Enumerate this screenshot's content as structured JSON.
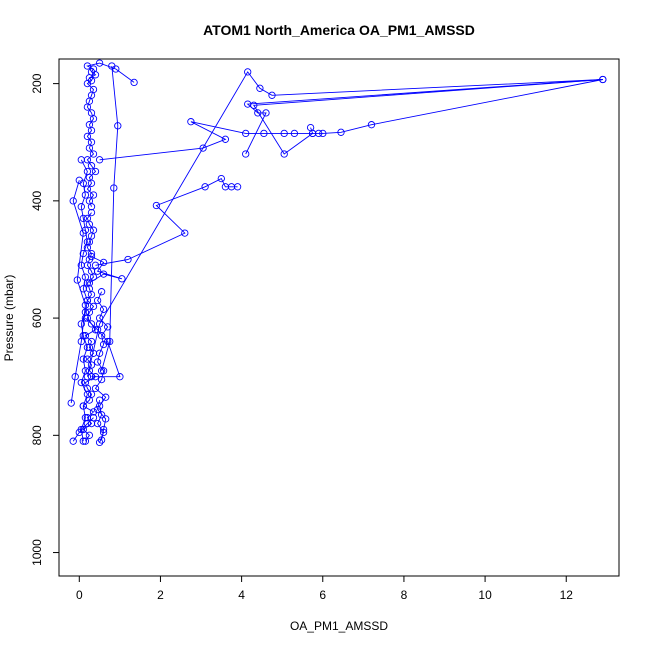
{
  "chart_data": {
    "type": "line",
    "title": "ATOM1 North_America OA_PM1_AMSSD",
    "xlabel": "OA_PM1_AMSSD",
    "ylabel": "Pressure (mbar)",
    "xlim": [
      -0.5,
      13.3
    ],
    "ylim": [
      1040,
      158
    ],
    "y_reversed": true,
    "grid": false,
    "legend": "none",
    "color": "#0000ff",
    "marker": "open-circle",
    "x_ticks": [
      0,
      2,
      4,
      6,
      8,
      10,
      12
    ],
    "y_ticks": [
      200,
      400,
      600,
      800,
      1000
    ],
    "series": [
      {
        "x": [
          0.15,
          0.25,
          0.1,
          0.3,
          0.2,
          0.35,
          0.1,
          0.25,
          0.3,
          0.2,
          0.15,
          0.4,
          0.25,
          0.3,
          0.2,
          0.35,
          0.25,
          0.3,
          0.15,
          0.4,
          0.3,
          0.2,
          0.25,
          0.35,
          0.2,
          0.3,
          0.25,
          0.2,
          0.35,
          0.3,
          0.2,
          0.25,
          0.3,
          0.2,
          0.25,
          0.3,
          0.35,
          0.25,
          0.2,
          0.3
        ],
        "y": [
          810,
          800,
          790,
          780,
          770,
          760,
          750,
          740,
          730,
          720,
          710,
          700,
          690,
          680,
          670,
          660,
          650,
          640,
          630,
          620,
          610,
          600,
          590,
          580,
          570,
          560,
          550,
          540,
          530,
          520,
          510,
          500,
          490,
          480,
          470,
          460,
          450,
          440,
          430,
          420
        ]
      },
      {
        "x": [
          0.3,
          0.25,
          0.35,
          0.2,
          0.3,
          0.25,
          0.4,
          0.3,
          0.2,
          0.35,
          0.25,
          0.3,
          0.2,
          0.3,
          0.25,
          0.35,
          0.3,
          0.2,
          0.25,
          0.3,
          0.35,
          0.2,
          0.3,
          0.25,
          0.4,
          0.3,
          0.35,
          0.2,
          0.5,
          0.9,
          1.35
        ],
        "y": [
          410,
          400,
          390,
          380,
          370,
          360,
          350,
          340,
          330,
          320,
          310,
          300,
          290,
          280,
          270,
          260,
          250,
          240,
          230,
          220,
          210,
          200,
          195,
          190,
          185,
          180,
          175,
          170,
          165,
          175,
          198
        ]
      },
      {
        "x": [
          0.1,
          0.05,
          0.15,
          0.1,
          0.2,
          0.05,
          0.15,
          0.1,
          0.2,
          0.1,
          0.05,
          0.15,
          0.2,
          0.1,
          0.15,
          0.05,
          0.1,
          0.2,
          0.15,
          0.1,
          0.05,
          0.15,
          0.1,
          0.2,
          0.05
        ],
        "y": [
          810,
          790,
          770,
          750,
          730,
          710,
          690,
          670,
          650,
          630,
          610,
          590,
          570,
          550,
          530,
          510,
          490,
          470,
          450,
          430,
          410,
          390,
          370,
          350,
          330
        ]
      },
      {
        "x": [
          0.5,
          0.6,
          0.45,
          0.55,
          0.5,
          0.65,
          0.4,
          0.55,
          0.6,
          0.45,
          0.5,
          0.6,
          0.55,
          0.7,
          0.5,
          0.6,
          0.45,
          0.55
        ],
        "y": [
          812,
          795,
          780,
          765,
          750,
          735,
          720,
          705,
          690,
          675,
          660,
          645,
          630,
          615,
          600,
          585,
          570,
          555
        ]
      },
      {
        "x": [
          -0.15,
          0.0,
          0.2,
          0.35
        ],
        "y": [
          810,
          795,
          780,
          770
        ]
      },
      {
        "x": [
          0.55,
          0.6,
          0.65,
          0.45,
          0.5
        ],
        "y": [
          808,
          790,
          772,
          756,
          740
        ]
      },
      {
        "x": [
          0.25,
          0.6,
          1.05,
          0.45,
          0.6,
          0.3
        ],
        "y": [
          540,
          525,
          533,
          520,
          505,
          495
        ]
      },
      {
        "x": [
          0.4,
          1.2,
          2.6,
          1.9,
          3.1,
          3.5,
          3.6,
          3.75,
          3.9
        ],
        "y": [
          510,
          500,
          455,
          408,
          376,
          362,
          376,
          376,
          376
        ]
      },
      {
        "x": [
          0.5,
          3.05,
          3.6,
          2.75,
          4.1,
          4.55,
          5.05,
          5.3,
          5.75,
          5.9,
          6.0,
          6.45,
          7.2,
          12.9,
          4.15,
          4.4,
          4.6,
          4.1
        ],
        "y": [
          330,
          310,
          295,
          265,
          285,
          285,
          285,
          285,
          285,
          285,
          285,
          283,
          270,
          193,
          235,
          250,
          250,
          320
        ]
      },
      {
        "x": [
          0.2,
          0.5,
          4.15,
          4.45,
          4.75,
          12.9,
          4.3,
          5.05,
          5.75,
          5.7
        ],
        "y": [
          700,
          610,
          180,
          208,
          220,
          193,
          237,
          320,
          285,
          275
        ]
      },
      {
        "x": [
          0.55,
          0.75,
          0.85,
          0.95,
          0.8
        ],
        "y": [
          690,
          640,
          378,
          272,
          170
        ]
      },
      {
        "x": [
          -0.2,
          -0.1,
          0.05,
          0.15,
          -0.05,
          0.1,
          -0.15,
          0.0
        ],
        "y": [
          745,
          700,
          640,
          578,
          535,
          455,
          400,
          365
        ]
      },
      {
        "x": [
          0.3,
          1.0,
          0.7,
          0.45,
          0.15
        ],
        "y": [
          700,
          700,
          640,
          620,
          600
        ]
      }
    ]
  }
}
